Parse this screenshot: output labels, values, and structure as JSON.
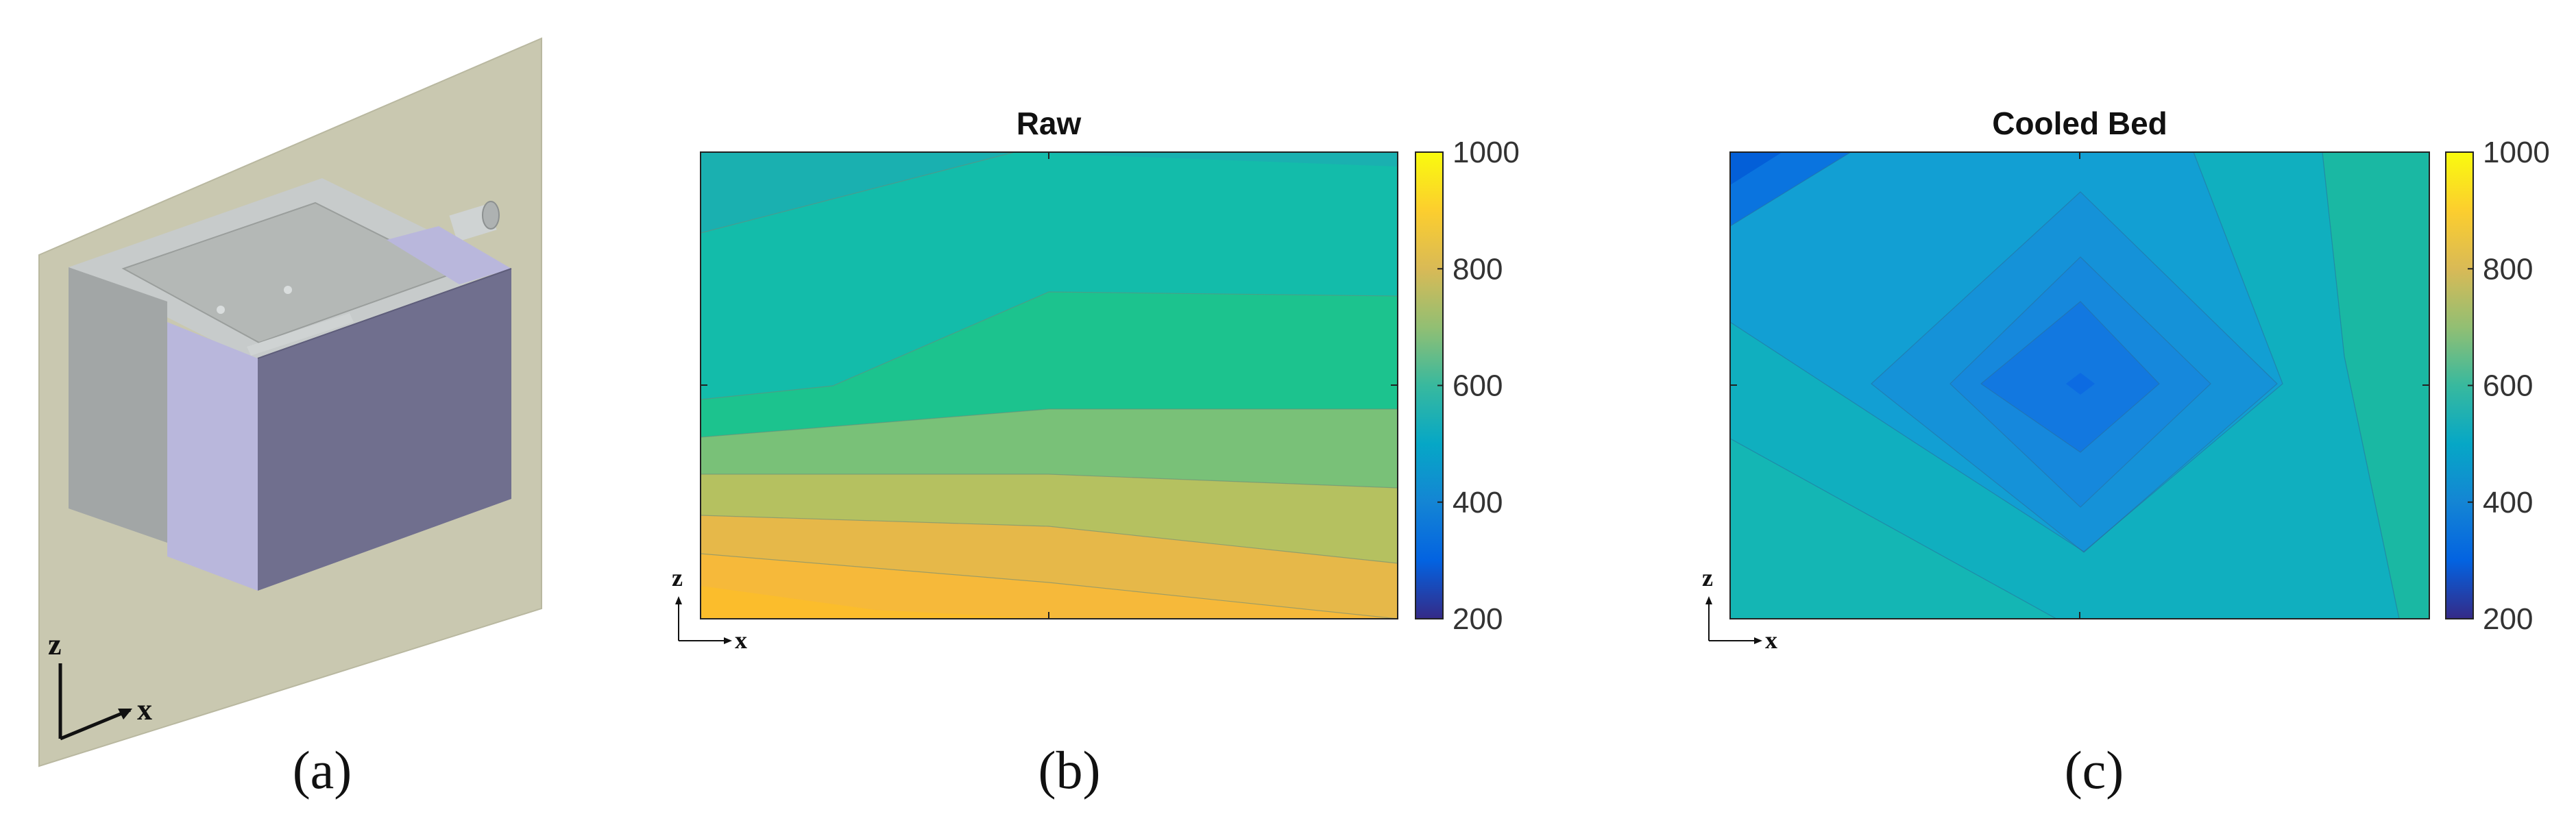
{
  "panels": {
    "a": {
      "caption": "(a)",
      "axis_z": "z",
      "axis_x": "x"
    },
    "b": {
      "caption": "(b)",
      "axis_z": "z",
      "axis_x": "x"
    },
    "c": {
      "caption": "(c)",
      "axis_z": "z",
      "axis_x": "x"
    }
  },
  "colors": {
    "wall_plane": "#c9c8b0",
    "box_dark_gray": "#a2a6a6",
    "box_light_gray": "#c7cbcb",
    "box_inner_gray": "#b4b8b6",
    "box_lavender": "#b9b7dc",
    "box_front": "#706f8e",
    "pipe": "#cfd3d3"
  },
  "chart_data": [
    {
      "type": "heatmap",
      "subtype": "filled-contour",
      "title": "Raw",
      "xlabel": "x",
      "ylabel": "z",
      "x_ticks": [
        0,
        0.5,
        1
      ],
      "z_ticks": [
        0,
        0.5,
        1
      ],
      "xlim": [
        0,
        1
      ],
      "zlim": [
        0,
        1
      ],
      "colorbar": {
        "min": 200,
        "max": 1000,
        "ticks": [
          200,
          400,
          600,
          800,
          1000
        ],
        "colormap": "parula"
      },
      "contour_bands": [
        {
          "value": 580,
          "boundary_x": [
            0,
            0.45,
            1
          ],
          "boundary_z": [
            0.83,
            1.0,
            0.97
          ]
        },
        {
          "value": 610,
          "boundary_x": [
            0,
            0.19,
            0.5,
            1
          ],
          "boundary_z": [
            0.47,
            0.5,
            0.7,
            0.69
          ]
        },
        {
          "value": 650,
          "boundary_x": [
            0,
            0.5,
            1
          ],
          "boundary_z": [
            0.39,
            0.45,
            0.45
          ]
        },
        {
          "value": 700,
          "boundary_x": [
            0,
            0.5,
            1
          ],
          "boundary_z": [
            0.31,
            0.31,
            0.28
          ]
        },
        {
          "value": 750,
          "boundary_x": [
            0,
            0.5,
            1
          ],
          "boundary_z": [
            0.22,
            0.2,
            0.12
          ]
        },
        {
          "value": 800,
          "boundary_x": [
            0,
            0.5,
            1
          ],
          "boundary_z": [
            0.14,
            0.08,
            0.0
          ]
        },
        {
          "value": 840,
          "boundary_x": [
            0,
            0.25,
            0.5
          ],
          "boundary_z": [
            0.07,
            0.02,
            0.0
          ]
        },
        {
          "value": 870,
          "boundary_x": [],
          "boundary_z": []
        }
      ]
    },
    {
      "type": "heatmap",
      "subtype": "filled-contour",
      "title": "Cooled Bed",
      "xlabel": "x",
      "ylabel": "z",
      "x_ticks": [
        0,
        0.5,
        1
      ],
      "z_ticks": [
        0,
        0.5,
        1
      ],
      "xlim": [
        0,
        1
      ],
      "zlim": [
        0,
        1
      ],
      "colorbar": {
        "min": 200,
        "max": 1000,
        "ticks": [
          200,
          400,
          600,
          800,
          1000
        ],
        "colormap": "parula"
      },
      "minimum": {
        "x": 0.5,
        "z": 0.5,
        "value": 450
      },
      "contour_bands": [
        {
          "value": 640,
          "note": "right region"
        },
        {
          "value": 580,
          "note": "outer background"
        },
        {
          "value": 545,
          "note": "wide diamond / upper-left gradient"
        },
        {
          "value": 520,
          "note": "middle diamond"
        },
        {
          "value": 495,
          "note": "inner diamond"
        },
        {
          "value": 470,
          "note": "small diamond"
        },
        {
          "value": 450,
          "note": "central minimum"
        },
        {
          "value": 490,
          "note": "top-left corner band"
        },
        {
          "value": 420,
          "note": "top-left corner"
        }
      ]
    }
  ]
}
